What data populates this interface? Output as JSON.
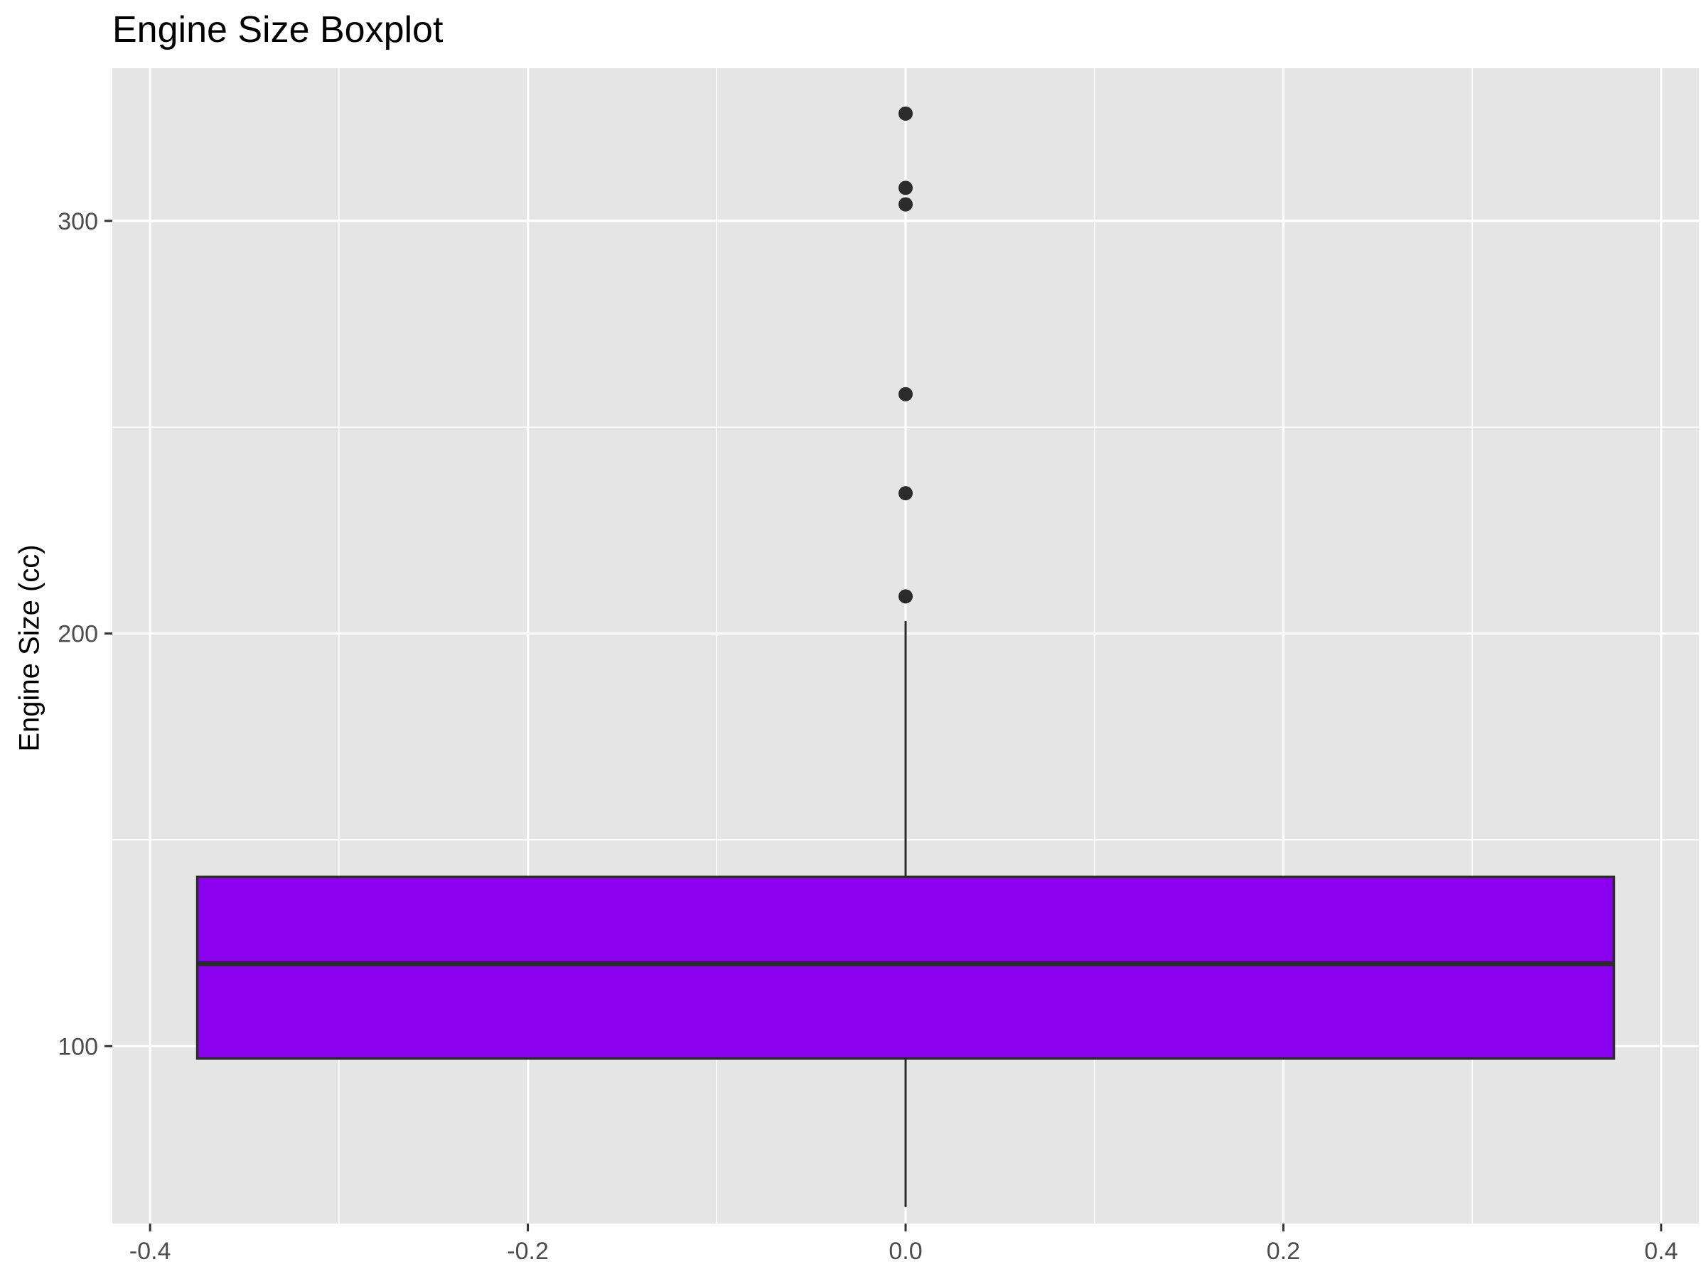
{
  "chart_data": {
    "type": "boxplot",
    "title": "Engine Size Boxplot",
    "xlabel": "",
    "ylabel": "Engine Size (cc)",
    "xlim": [
      -0.42,
      0.42
    ],
    "ylim": [
      57,
      337
    ],
    "x_ticks": [
      -0.4,
      -0.2,
      0.0,
      0.2,
      0.4
    ],
    "x_tick_labels": [
      "-0.4",
      "-0.2",
      "0.0",
      "0.2",
      "0.4"
    ],
    "y_ticks": [
      100,
      200,
      300
    ],
    "y_tick_labels": [
      "100",
      "200",
      "300"
    ],
    "grid": true,
    "legend": "none",
    "box": {
      "x_center": 0.0,
      "x_left": -0.375,
      "x_right": 0.375,
      "whisker_low": 61,
      "q1": 97,
      "median": 120,
      "q3": 141,
      "whisker_high": 203
    },
    "outliers": [
      209,
      234,
      258,
      304,
      308,
      326
    ],
    "colors": {
      "panel_background": "#e5e5e5",
      "grid": "#ffffff",
      "box_fill": "#8b00ee",
      "box_line": "#2b2b2b",
      "outlier": "#2b2b2b",
      "tick_text": "#4d4d4d"
    }
  }
}
